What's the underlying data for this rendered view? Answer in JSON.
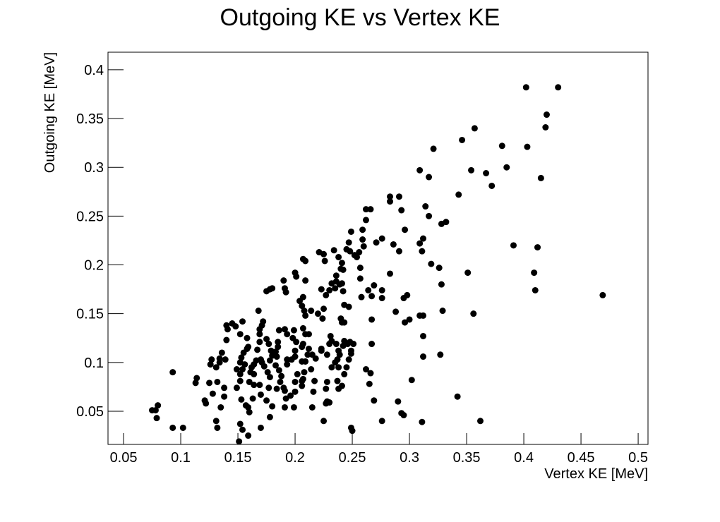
{
  "chart_data": {
    "type": "scatter",
    "title": "Outgoing KE vs Vertex KE",
    "x_label": "Vertex KE [MeV]",
    "y_label": "Outgoing KE [MeV]",
    "color": "#000000",
    "xlim": [
      0.0364,
      0.5086
    ],
    "ylim": [
      0.016,
      0.418
    ],
    "xticks": [
      0.05,
      0.1,
      0.15,
      0.2,
      0.25,
      0.3,
      0.35,
      0.4,
      0.45,
      0.5
    ],
    "yticks": [
      0.05,
      0.1,
      0.15,
      0.2,
      0.25,
      0.3,
      0.35,
      0.4
    ],
    "x": [
      0.469,
      0.402,
      0.43,
      0.42,
      0.419,
      0.403,
      0.381,
      0.385,
      0.415,
      0.372,
      0.367,
      0.354,
      0.357,
      0.346,
      0.321,
      0.317,
      0.309,
      0.343,
      0.332,
      0.328,
      0.314,
      0.317,
      0.312,
      0.309,
      0.311,
      0.319,
      0.326,
      0.328,
      0.329,
      0.356,
      0.312,
      0.309,
      0.3,
      0.296,
      0.298,
      0.288,
      0.295,
      0.351,
      0.391,
      0.412,
      0.409,
      0.41,
      0.312,
      0.327,
      0.312,
      0.302,
      0.29,
      0.293,
      0.295,
      0.311,
      0.342,
      0.362,
      0.283,
      0.276,
      0.269,
      0.276,
      0.264,
      0.267,
      0.267,
      0.267,
      0.258,
      0.257,
      0.257,
      0.252,
      0.256,
      0.26,
      0.259,
      0.262,
      0.266,
      0.262,
      0.283,
      0.283,
      0.291,
      0.293,
      0.296,
      0.291,
      0.286,
      0.276,
      0.271,
      0.259,
      0.249,
      0.247,
      0.245,
      0.248,
      0.254,
      0.242,
      0.24,
      0.239,
      0.242,
      0.243,
      0.24,
      0.243,
      0.251,
      0.249,
      0.247,
      0.262,
      0.266,
      0.265,
      0.269,
      0.276,
      0.249,
      0.25,
      0.247,
      0.238,
      0.234,
      0.225,
      0.221,
      0.226,
      0.241,
      0.236,
      0.236,
      0.232,
      0.241,
      0.235,
      0.23,
      0.223,
      0.227,
      0.225,
      0.22,
      0.224,
      0.241,
      0.231,
      0.232,
      0.236,
      0.243,
      0.248,
      0.246,
      0.249,
      0.242,
      0.238,
      0.239,
      0.237,
      0.223,
      0.228,
      0.223,
      0.23,
      0.235,
      0.238,
      0.232,
      0.245,
      0.243,
      0.237,
      0.241,
      0.238,
      0.228,
      0.227,
      0.228,
      0.23,
      0.227,
      0.217,
      0.225,
      0.215,
      0.216,
      0.209,
      0.208,
      0.207,
      0.212,
      0.209,
      0.207,
      0.208,
      0.202,
      0.207,
      0.206,
      0.2,
      0.2,
      0.206,
      0.209,
      0.209,
      0.207,
      0.201,
      0.2,
      0.19,
      0.191,
      0.192,
      0.207,
      0.204,
      0.206,
      0.214,
      0.199,
      0.198,
      0.201,
      0.206,
      0.212,
      0.211,
      0.215,
      0.218,
      0.214,
      0.209,
      0.206,
      0.2,
      0.2,
      0.197,
      0.193,
      0.191,
      0.193,
      0.193,
      0.186,
      0.185,
      0.185,
      0.183,
      0.184,
      0.183,
      0.186,
      0.188,
      0.187,
      0.19,
      0.191,
      0.196,
      0.192,
      0.199,
      0.191,
      0.18,
      0.178,
      0.178,
      0.175,
      0.18,
      0.175,
      0.177,
      0.179,
      0.18,
      0.178,
      0.17,
      0.171,
      0.173,
      0.176,
      0.178,
      0.177,
      0.184,
      0.175,
      0.169,
      0.169,
      0.167,
      0.166,
      0.164,
      0.161,
      0.164,
      0.16,
      0.164,
      0.169,
      0.17,
      0.163,
      0.159,
      0.16,
      0.17,
      0.168,
      0.172,
      0.171,
      0.169,
      0.159,
      0.158,
      0.155,
      0.153,
      0.152,
      0.156,
      0.154,
      0.149,
      0.152,
      0.152,
      0.149,
      0.153,
      0.157,
      0.152,
      0.154,
      0.159,
      0.151,
      0.162,
      0.158,
      0.154,
      0.152,
      0.148,
      0.145,
      0.14,
      0.141,
      0.14,
      0.136,
      0.139,
      0.134,
      0.134,
      0.131,
      0.132,
      0.138,
      0.138,
      0.135,
      0.131,
      0.132,
      0.127,
      0.126,
      0.125,
      0.128,
      0.121,
      0.122,
      0.114,
      0.113,
      0.093,
      0.078,
      0.079,
      0.075,
      0.102,
      0.093,
      0.08
    ],
    "values": [
      0.169,
      0.382,
      0.382,
      0.354,
      0.341,
      0.321,
      0.322,
      0.3,
      0.289,
      0.281,
      0.294,
      0.297,
      0.34,
      0.328,
      0.319,
      0.29,
      0.297,
      0.272,
      0.244,
      0.242,
      0.26,
      0.25,
      0.227,
      0.222,
      0.214,
      0.201,
      0.197,
      0.18,
      0.153,
      0.15,
      0.148,
      0.148,
      0.144,
      0.141,
      0.169,
      0.152,
      0.166,
      0.192,
      0.22,
      0.218,
      0.192,
      0.174,
      0.106,
      0.108,
      0.127,
      0.082,
      0.06,
      0.048,
      0.046,
      0.039,
      0.065,
      0.04,
      0.191,
      0.174,
      0.179,
      0.166,
      0.174,
      0.168,
      0.144,
      0.119,
      0.167,
      0.186,
      0.197,
      0.21,
      0.213,
      0.219,
      0.226,
      0.246,
      0.257,
      0.257,
      0.265,
      0.27,
      0.27,
      0.256,
      0.236,
      0.214,
      0.221,
      0.227,
      0.223,
      0.236,
      0.234,
      0.223,
      0.216,
      0.214,
      0.208,
      0.195,
      0.196,
      0.18,
      0.173,
      0.159,
      0.145,
      0.141,
      0.119,
      0.112,
      0.103,
      0.093,
      0.089,
      0.078,
      0.061,
      0.04,
      0.033,
      0.03,
      0.157,
      0.208,
      0.215,
      0.211,
      0.213,
      0.204,
      0.202,
      0.189,
      0.183,
      0.181,
      0.181,
      0.176,
      0.174,
      0.175,
      0.169,
      0.155,
      0.15,
      0.145,
      0.141,
      0.127,
      0.122,
      0.119,
      0.122,
      0.121,
      0.119,
      0.109,
      0.117,
      0.112,
      0.108,
      0.103,
      0.112,
      0.108,
      0.114,
      0.119,
      0.1,
      0.095,
      0.095,
      0.095,
      0.088,
      0.081,
      0.076,
      0.073,
      0.08,
      0.073,
      0.06,
      0.059,
      0.058,
      0.081,
      0.04,
      0.054,
      0.07,
      0.148,
      0.153,
      0.135,
      0.129,
      0.129,
      0.119,
      0.09,
      0.088,
      0.083,
      0.076,
      0.08,
      0.07,
      0.081,
      0.184,
      0.204,
      0.206,
      0.188,
      0.192,
      0.184,
      0.176,
      0.172,
      0.167,
      0.163,
      0.158,
      0.153,
      0.133,
      0.125,
      0.121,
      0.116,
      0.114,
      0.108,
      0.108,
      0.104,
      0.093,
      0.101,
      0.101,
      0.106,
      0.112,
      0.103,
      0.098,
      0.134,
      0.129,
      0.103,
      0.133,
      0.121,
      0.116,
      0.111,
      0.106,
      0.097,
      0.092,
      0.086,
      0.08,
      0.074,
      0.071,
      0.066,
      0.063,
      0.054,
      0.054,
      0.055,
      0.044,
      0.175,
      0.173,
      0.176,
      0.124,
      0.119,
      0.112,
      0.107,
      0.102,
      0.103,
      0.1,
      0.096,
      0.09,
      0.085,
      0.074,
      0.073,
      0.061,
      0.134,
      0.121,
      0.113,
      0.102,
      0.098,
      0.09,
      0.088,
      0.08,
      0.077,
      0.077,
      0.067,
      0.063,
      0.054,
      0.049,
      0.033,
      0.153,
      0.142,
      0.138,
      0.129,
      0.116,
      0.114,
      0.11,
      0.105,
      0.1,
      0.098,
      0.093,
      0.093,
      0.088,
      0.081,
      0.074,
      0.062,
      0.056,
      0.037,
      0.031,
      0.025,
      0.019,
      0.095,
      0.125,
      0.142,
      0.129,
      0.137,
      0.14,
      0.138,
      0.134,
      0.123,
      0.11,
      0.103,
      0.104,
      0.1,
      0.095,
      0.08,
      0.074,
      0.065,
      0.054,
      0.04,
      0.033,
      0.103,
      0.098,
      0.079,
      0.068,
      0.061,
      0.058,
      0.084,
      0.079,
      0.09,
      0.051,
      0.043,
      0.051,
      0.033,
      0.033,
      0.056
    ]
  }
}
